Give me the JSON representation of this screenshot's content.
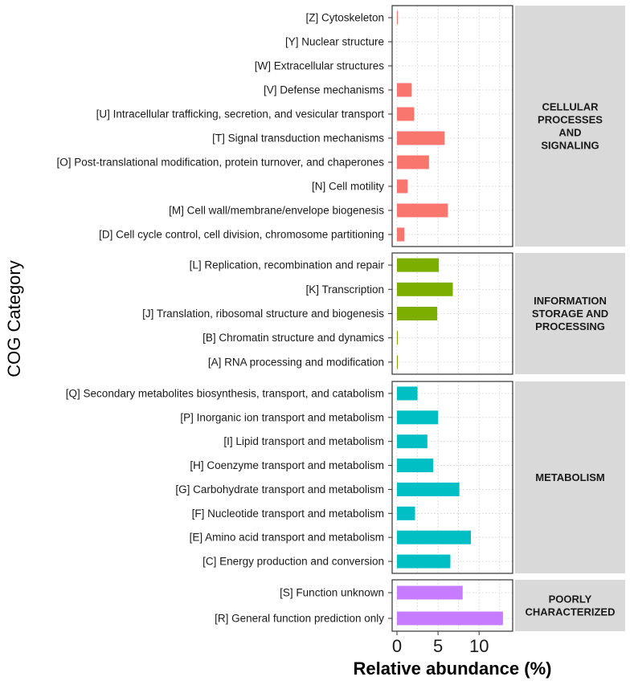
{
  "chart_data": {
    "type": "bar",
    "orientation": "horizontal",
    "xlabel": "Relative abundance (%)",
    "ylabel": "COG Category",
    "xlim": [
      0,
      13.5
    ],
    "xticks": [
      0,
      5,
      10
    ],
    "grid": true,
    "panels": [
      {
        "name": "CELLULAR PROCESSES AND SIGNALING",
        "name_lines": [
          "CELLULAR",
          "PROCESSES",
          "AND",
          "SIGNALING"
        ],
        "color": "#F8766D",
        "categories": [
          "[Z] Cytoskeleton",
          "[Y] Nuclear structure",
          "[W] Extracellular structures",
          "[V] Defense mechanisms",
          "[U] Intracellular trafficking, secretion, and vesicular transport",
          "[T] Signal transduction mechanisms",
          "[O] Post-translational modification, protein turnover, and chaperones",
          "[N] Cell motility",
          "[M] Cell wall/membrane/envelope biogenesis",
          "[D] Cell cycle control, cell division, chromosome partitioning"
        ],
        "values": [
          0.1,
          0,
          0,
          1.8,
          2.1,
          5.8,
          3.9,
          1.3,
          6.2,
          0.9
        ]
      },
      {
        "name": "INFORMATION STORAGE AND PROCESSING",
        "name_lines": [
          "INFORMATION",
          "STORAGE AND",
          "PROCESSING"
        ],
        "color": "#7CAE00",
        "categories": [
          "[L] Replication, recombination and repair",
          "[K] Transcription",
          "[J] Translation, ribosomal structure and biogenesis",
          "[B] Chromatin structure and dynamics",
          "[A] RNA processing and modification"
        ],
        "values": [
          5.1,
          6.8,
          4.9,
          0.1,
          0.1
        ]
      },
      {
        "name": "METABOLISM",
        "name_lines": [
          "METABOLISM"
        ],
        "color": "#00BFC4",
        "categories": [
          "[Q] Secondary metabolites biosynthesis, transport, and catabolism",
          "[P] Inorganic ion transport and metabolism",
          "[I] Lipid transport and metabolism",
          "[H] Coenzyme transport and metabolism",
          "[G] Carbohydrate transport and metabolism",
          "[F] Nucleotide transport and metabolism",
          "[E] Amino acid transport and metabolism",
          "[C] Energy production and conversion"
        ],
        "values": [
          2.5,
          5.0,
          3.7,
          4.4,
          7.6,
          2.2,
          9.0,
          6.5
        ]
      },
      {
        "name": "POORLY CHARACTERIZED",
        "name_lines": [
          "POORLY",
          "CHARACTERIZED"
        ],
        "color": "#C77CFF",
        "categories": [
          "[S] Function unknown",
          "[R] General function prediction only"
        ],
        "values": [
          8.0,
          12.9
        ]
      }
    ]
  }
}
